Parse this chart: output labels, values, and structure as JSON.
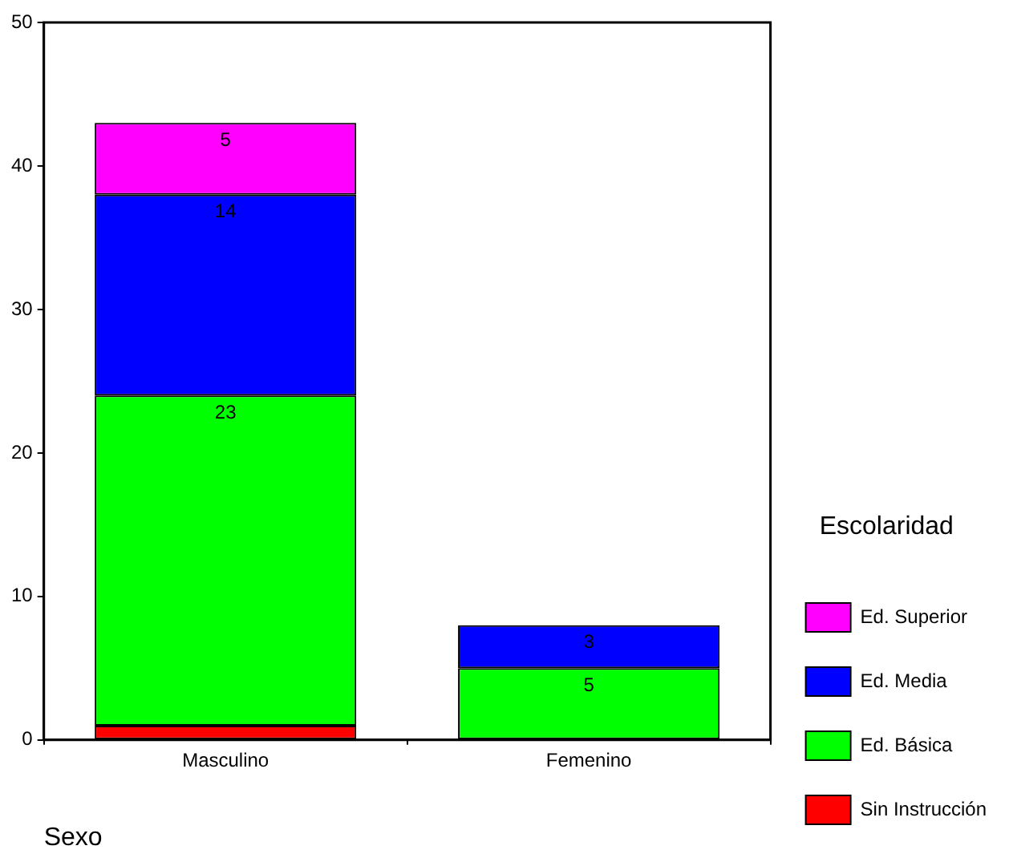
{
  "chart_data": {
    "type": "bar",
    "stacked": true,
    "xlabel": "Sexo",
    "legend_title": "Escolaridad",
    "legend": "right",
    "categories": [
      "Masculino",
      "Femenino"
    ],
    "ylim": [
      0,
      50
    ],
    "yticks": [
      0,
      10,
      20,
      30,
      40,
      50
    ],
    "series": [
      {
        "name": "Sin Instrucción",
        "color": "#ff0000",
        "values": [
          1,
          0
        ],
        "value_labels": [
          null,
          null
        ]
      },
      {
        "name": "Ed. Básica",
        "color": "#00ff00",
        "values": [
          23,
          5
        ],
        "value_labels": [
          "23",
          "5"
        ]
      },
      {
        "name": "Ed. Media",
        "color": "#0000ff",
        "values": [
          14,
          3
        ],
        "value_labels": [
          "14",
          "3"
        ]
      },
      {
        "name": "Ed. Superior",
        "color": "#ff00ff",
        "values": [
          5,
          0
        ],
        "value_labels": [
          "5",
          null
        ]
      }
    ]
  }
}
